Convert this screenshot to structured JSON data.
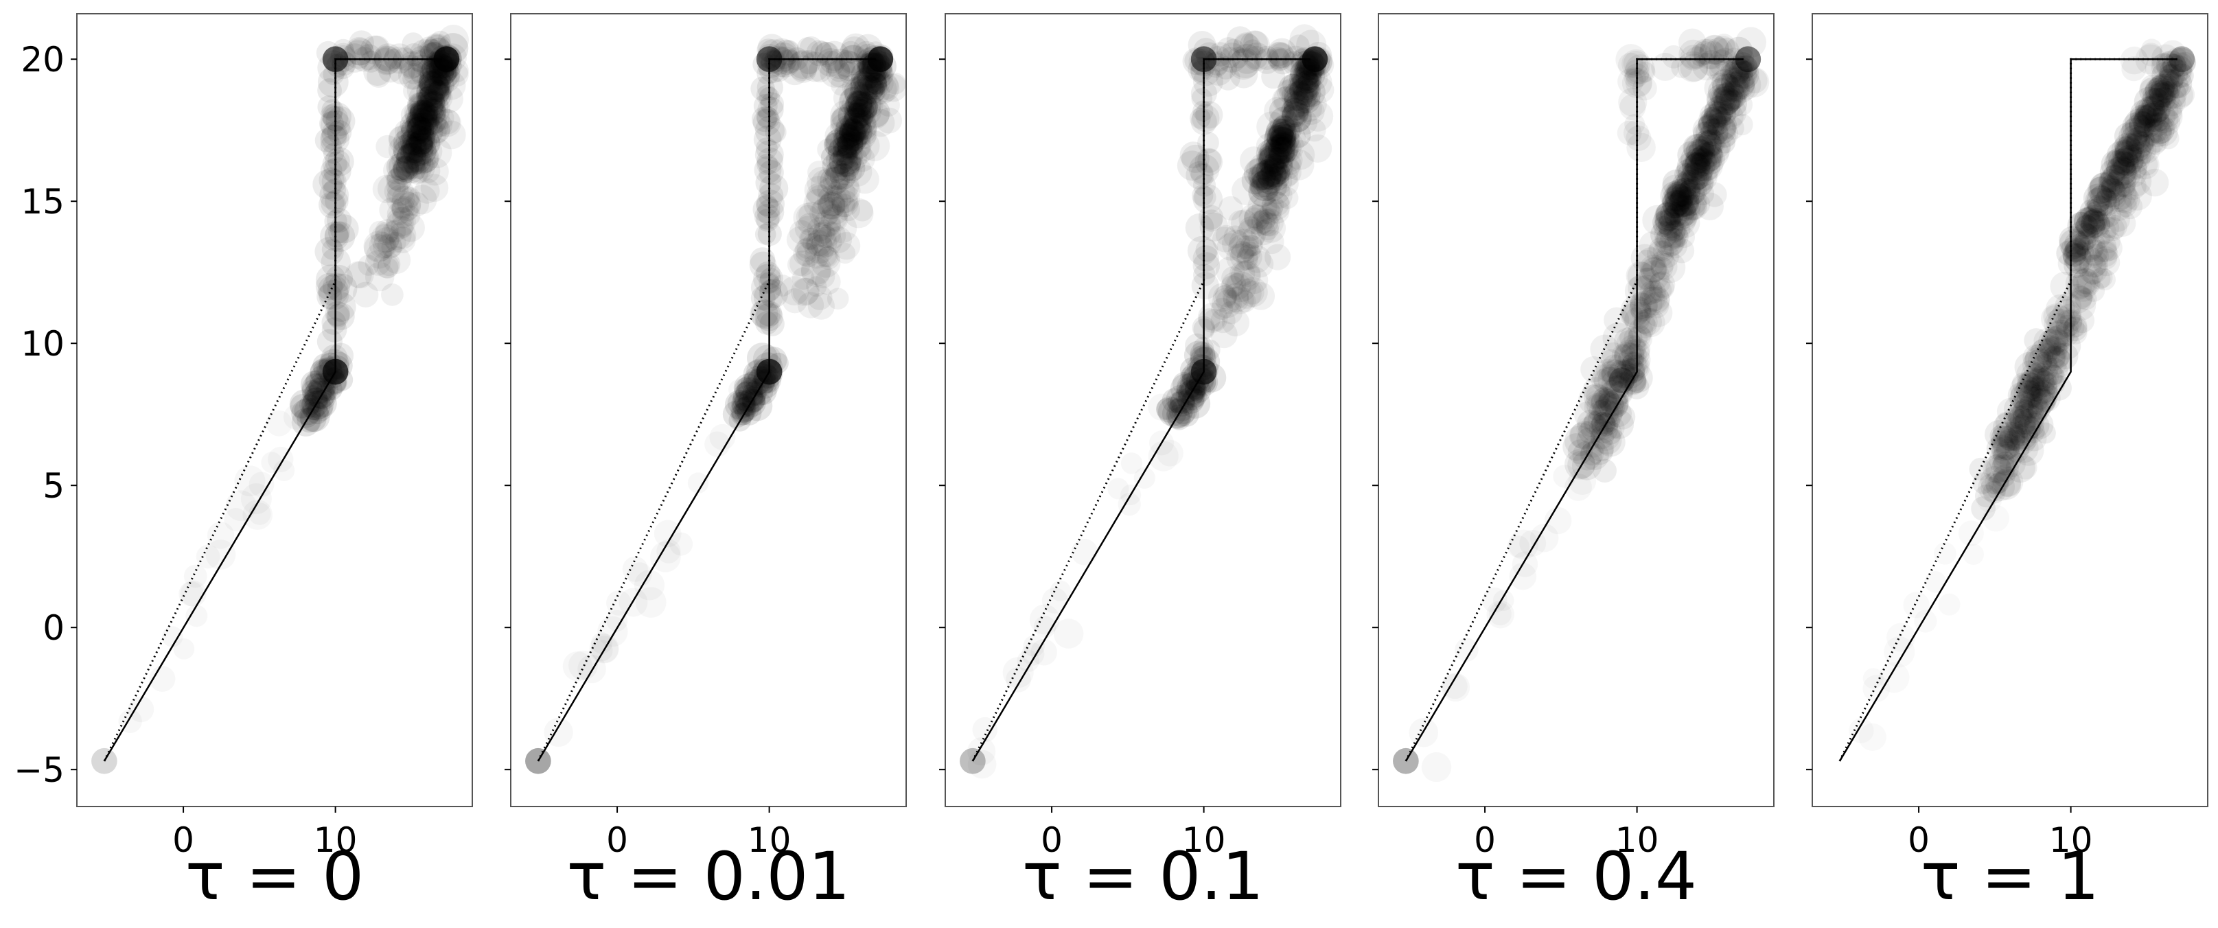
{
  "chart_data": [
    {
      "type": "scatter",
      "title": "τ = 0",
      "xlim": [
        -7,
        19
      ],
      "ylim": [
        -6.3,
        21.6
      ],
      "x_ticks": [
        0,
        10
      ],
      "y_ticks": [
        -5,
        0,
        5,
        10,
        15,
        20
      ],
      "show_y_tick_labels": true,
      "grid": false,
      "dotted_path": [
        [
          -5.2,
          -4.7
        ],
        [
          10,
          12.2
        ],
        [
          10,
          20
        ],
        [
          17,
          20
        ]
      ],
      "solid_path": [
        [
          -5.2,
          -4.7
        ],
        [
          10,
          9
        ],
        [
          10,
          20
        ],
        [
          17,
          20
        ]
      ],
      "clusters": [
        {
          "from": [
            10,
            9
          ],
          "to": [
            10,
            20
          ],
          "n": 60,
          "spread": 0.5,
          "alpha": 0.08
        },
        {
          "from": [
            10,
            20
          ],
          "to": [
            17,
            20
          ],
          "n": 50,
          "spread": 0.6,
          "alpha": 0.07
        },
        {
          "from": [
            13,
            12.5
          ],
          "to": [
            17.2,
            19.8
          ],
          "n": 140,
          "spread": 1.4,
          "alpha": 0.06
        },
        {
          "from": [
            14.5,
            16
          ],
          "to": [
            17.2,
            20
          ],
          "n": 120,
          "spread": 0.6,
          "alpha": 0.1
        },
        {
          "from": [
            8.2,
            7.6
          ],
          "to": [
            10.2,
            9.2
          ],
          "n": 50,
          "spread": 0.5,
          "alpha": 0.1
        },
        {
          "from": [
            -4.6,
            -4
          ],
          "to": [
            8.5,
            8
          ],
          "n": 24,
          "spread": 0.9,
          "alpha": 0.03
        }
      ],
      "hotspots": [
        {
          "x": 10,
          "y": 9,
          "alpha": 0.7
        },
        {
          "x": 10,
          "y": 20,
          "alpha": 0.6
        },
        {
          "x": 17.3,
          "y": 20,
          "alpha": 0.75
        },
        {
          "x": -5.2,
          "y": -4.7,
          "alpha": 0.15
        }
      ]
    },
    {
      "type": "scatter",
      "title": "τ = 0.01",
      "xlim": [
        -7,
        19
      ],
      "ylim": [
        -6.3,
        21.6
      ],
      "x_ticks": [
        0,
        10
      ],
      "y_ticks": [
        -5,
        0,
        5,
        10,
        15,
        20
      ],
      "show_y_tick_labels": false,
      "grid": false,
      "dotted_path": [
        [
          -5.2,
          -4.7
        ],
        [
          10,
          12.2
        ],
        [
          10,
          20
        ],
        [
          17,
          20
        ]
      ],
      "solid_path": [
        [
          -5.2,
          -4.7
        ],
        [
          10,
          9
        ],
        [
          10,
          20
        ],
        [
          17,
          20
        ]
      ],
      "clusters": [
        {
          "from": [
            10,
            9
          ],
          "to": [
            10,
            20
          ],
          "n": 55,
          "spread": 0.5,
          "alpha": 0.08
        },
        {
          "from": [
            10,
            20
          ],
          "to": [
            17,
            20
          ],
          "n": 50,
          "spread": 0.6,
          "alpha": 0.07
        },
        {
          "from": [
            12.5,
            12
          ],
          "to": [
            17.2,
            19.8
          ],
          "n": 140,
          "spread": 1.4,
          "alpha": 0.06
        },
        {
          "from": [
            14.5,
            16
          ],
          "to": [
            17.2,
            20
          ],
          "n": 120,
          "spread": 0.6,
          "alpha": 0.1
        },
        {
          "from": [
            8.2,
            7.6
          ],
          "to": [
            10.2,
            9.2
          ],
          "n": 50,
          "spread": 0.5,
          "alpha": 0.1
        },
        {
          "from": [
            -4.6,
            -4
          ],
          "to": [
            8.5,
            8
          ],
          "n": 24,
          "spread": 0.9,
          "alpha": 0.03
        }
      ],
      "hotspots": [
        {
          "x": 10,
          "y": 9,
          "alpha": 0.7
        },
        {
          "x": 10,
          "y": 20,
          "alpha": 0.55
        },
        {
          "x": 17.3,
          "y": 20,
          "alpha": 0.75
        },
        {
          "x": -5.2,
          "y": -4.7,
          "alpha": 0.35
        }
      ]
    },
    {
      "type": "scatter",
      "title": "τ = 0.1",
      "xlim": [
        -7,
        19
      ],
      "ylim": [
        -6.3,
        21.6
      ],
      "x_ticks": [
        0,
        10
      ],
      "y_ticks": [
        -5,
        0,
        5,
        10,
        15,
        20
      ],
      "show_y_tick_labels": false,
      "grid": false,
      "dotted_path": [
        [
          -5.2,
          -4.7
        ],
        [
          10,
          12.2
        ],
        [
          10,
          20
        ],
        [
          17,
          20
        ]
      ],
      "solid_path": [
        [
          -5.2,
          -4.7
        ],
        [
          10,
          9
        ],
        [
          10,
          20
        ],
        [
          17,
          20
        ]
      ],
      "clusters": [
        {
          "from": [
            10,
            9
          ],
          "to": [
            10,
            20
          ],
          "n": 45,
          "spread": 0.6,
          "alpha": 0.07
        },
        {
          "from": [
            10,
            20
          ],
          "to": [
            17,
            20
          ],
          "n": 45,
          "spread": 0.6,
          "alpha": 0.07
        },
        {
          "from": [
            11.5,
            11
          ],
          "to": [
            17.2,
            19.8
          ],
          "n": 150,
          "spread": 1.3,
          "alpha": 0.06
        },
        {
          "from": [
            14,
            15.5
          ],
          "to": [
            17.2,
            20
          ],
          "n": 120,
          "spread": 0.6,
          "alpha": 0.1
        },
        {
          "from": [
            8,
            7.4
          ],
          "to": [
            10.2,
            9.2
          ],
          "n": 50,
          "spread": 0.6,
          "alpha": 0.1
        },
        {
          "from": [
            -4.6,
            -4
          ],
          "to": [
            8.5,
            8
          ],
          "n": 24,
          "spread": 0.9,
          "alpha": 0.03
        }
      ],
      "hotspots": [
        {
          "x": 10,
          "y": 9,
          "alpha": 0.6
        },
        {
          "x": 10,
          "y": 20,
          "alpha": 0.55
        },
        {
          "x": 17.3,
          "y": 20,
          "alpha": 0.7
        },
        {
          "x": -5.2,
          "y": -4.7,
          "alpha": 0.25
        }
      ]
    },
    {
      "type": "scatter",
      "title": "τ = 0.4",
      "xlim": [
        -7,
        19
      ],
      "ylim": [
        -6.3,
        21.6
      ],
      "x_ticks": [
        0,
        10
      ],
      "y_ticks": [
        -5,
        0,
        5,
        10,
        15,
        20
      ],
      "show_y_tick_labels": false,
      "grid": false,
      "dotted_path": [
        [
          -5.2,
          -4.7
        ],
        [
          10,
          12.2
        ],
        [
          10,
          20
        ],
        [
          17,
          20
        ]
      ],
      "solid_path": [
        [
          -5.2,
          -4.7
        ],
        [
          10,
          9
        ],
        [
          10,
          20
        ],
        [
          17,
          20
        ]
      ],
      "clusters": [
        {
          "from": [
            10,
            17
          ],
          "to": [
            10,
            20
          ],
          "n": 20,
          "spread": 0.6,
          "alpha": 0.05
        },
        {
          "from": [
            12,
            20
          ],
          "to": [
            17,
            20
          ],
          "n": 30,
          "spread": 0.6,
          "alpha": 0.06
        },
        {
          "from": [
            7,
            7
          ],
          "to": [
            17.2,
            19.8
          ],
          "n": 200,
          "spread": 1.0,
          "alpha": 0.06
        },
        {
          "from": [
            12,
            14
          ],
          "to": [
            17.2,
            20
          ],
          "n": 140,
          "spread": 0.5,
          "alpha": 0.09
        },
        {
          "from": [
            6.5,
            6
          ],
          "to": [
            10,
            9.5
          ],
          "n": 70,
          "spread": 0.8,
          "alpha": 0.07
        },
        {
          "from": [
            -4.6,
            -4
          ],
          "to": [
            8,
            7.5
          ],
          "n": 22,
          "spread": 0.9,
          "alpha": 0.03
        }
      ],
      "hotspots": [
        {
          "x": 17.3,
          "y": 20,
          "alpha": 0.5
        },
        {
          "x": 9,
          "y": 8.7,
          "alpha": 0.25
        },
        {
          "x": -5.2,
          "y": -4.7,
          "alpha": 0.3
        }
      ]
    },
    {
      "type": "scatter",
      "title": "τ = 1",
      "xlim": [
        -7,
        19
      ],
      "ylim": [
        -6.3,
        21.6
      ],
      "x_ticks": [
        0,
        10
      ],
      "y_ticks": [
        -5,
        0,
        5,
        10,
        15,
        20
      ],
      "show_y_tick_labels": false,
      "grid": false,
      "dotted_path": [
        [
          -5.2,
          -4.7
        ],
        [
          10,
          12.2
        ],
        [
          10,
          20
        ],
        [
          17,
          20
        ]
      ],
      "solid_path": [
        [
          -5.2,
          -4.7
        ],
        [
          10,
          9
        ],
        [
          10,
          20
        ],
        [
          17,
          20
        ]
      ],
      "clusters": [
        {
          "from": [
            5,
            5
          ],
          "to": [
            17.2,
            19.8
          ],
          "n": 210,
          "spread": 0.9,
          "alpha": 0.06
        },
        {
          "from": [
            10,
            13
          ],
          "to": [
            17.2,
            20
          ],
          "n": 150,
          "spread": 0.45,
          "alpha": 0.09
        },
        {
          "from": [
            4.5,
            4.5
          ],
          "to": [
            9.5,
            10.5
          ],
          "n": 90,
          "spread": 1.0,
          "alpha": 0.07
        },
        {
          "from": [
            14,
            20
          ],
          "to": [
            17,
            20
          ],
          "n": 12,
          "spread": 0.4,
          "alpha": 0.05
        },
        {
          "from": [
            -4.6,
            -4
          ],
          "to": [
            4.5,
            4.5
          ],
          "n": 16,
          "spread": 0.9,
          "alpha": 0.025
        }
      ],
      "hotspots": [
        {
          "x": 17.3,
          "y": 20,
          "alpha": 0.3
        }
      ]
    }
  ]
}
